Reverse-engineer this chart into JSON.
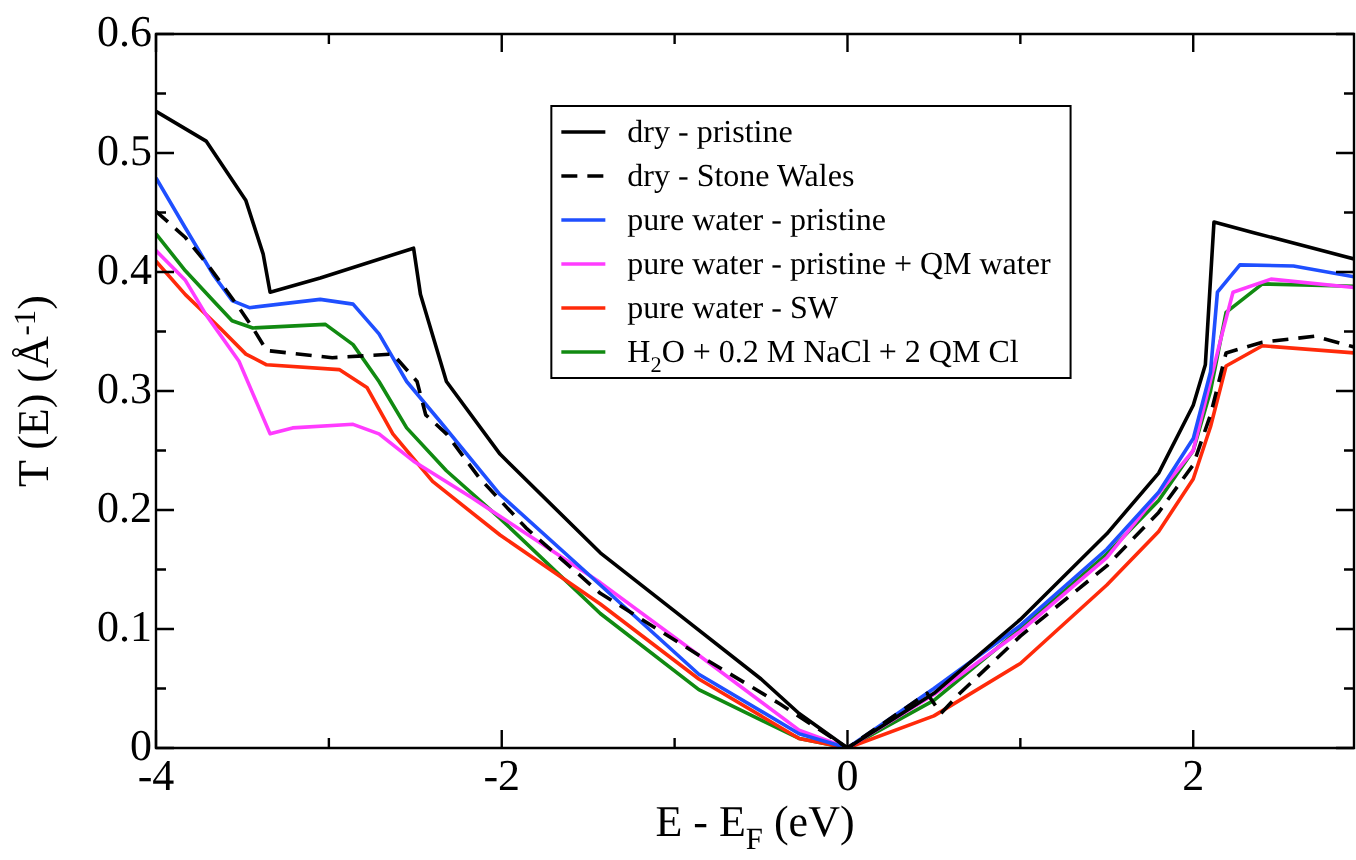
{
  "chart_data": {
    "type": "line",
    "xlabel": "E - E$_{F}$ (eV)",
    "ylabel": "T (E) (Å$^{-1}$)",
    "xlim": [
      -4,
      2.93
    ],
    "ylim": [
      0,
      0.6
    ],
    "xticks": [
      -4,
      {
        "value": -3,
        "label": null
      },
      -2,
      {
        "value": -1,
        "label": null
      },
      0,
      {
        "value": 1,
        "label": null
      },
      2
    ],
    "yticks": [
      0,
      {
        "value": 0.05,
        "label": null
      },
      0.1,
      {
        "value": 0.15,
        "label": null
      },
      0.2,
      {
        "value": 0.25,
        "label": null
      },
      0.3,
      {
        "value": 0.35,
        "label": null
      },
      0.4,
      {
        "value": 0.45,
        "label": null
      },
      0.5,
      {
        "value": 0.55,
        "label": null
      },
      0.6
    ],
    "grid": false,
    "legend": "top right",
    "marker": "none",
    "series": [
      {
        "name": "dry - pristine",
        "color": "#000000",
        "x": [
          -4,
          -3.71,
          -3.48,
          -3.38,
          -3.34,
          -3.05,
          -2.51,
          -2.47,
          -2.32,
          -2.01,
          -1.43,
          -1,
          -0.5,
          -0.28,
          0,
          0.5,
          1,
          1.5,
          1.8,
          2,
          2.07,
          2.12,
          2.35,
          2.93
        ],
        "values": [
          0.535,
          0.51,
          0.46,
          0.415,
          0.383,
          0.395,
          0.42,
          0.381,
          0.308,
          0.247,
          0.164,
          0.115,
          0.058,
          0.029,
          0,
          0.046,
          0.108,
          0.18,
          0.231,
          0.288,
          0.322,
          0.442,
          0.433,
          0.411
        ]
      },
      {
        "name": "dry - Stone Wales",
        "color": "#000000",
        "line_style": "dashed",
        "x": [
          -4,
          -3.83,
          -3.69,
          -3.52,
          -3.44,
          -3.36,
          -2.98,
          -2.63,
          -2.49,
          -2.44,
          -2.32,
          -2.13,
          -1.86,
          -1.43,
          -0.86,
          -0.39,
          0,
          0.25,
          0.46,
          0.54,
          0.65,
          1,
          1.5,
          1.8,
          2,
          2.1,
          2.19,
          2.4,
          2.7,
          2.93
        ],
        "values": [
          0.451,
          0.429,
          0.404,
          0.37,
          0.353,
          0.334,
          0.328,
          0.331,
          0.308,
          0.28,
          0.264,
          0.227,
          0.185,
          0.13,
          0.078,
          0.037,
          0,
          0.025,
          0.046,
          0.029,
          0.046,
          0.094,
          0.153,
          0.198,
          0.238,
          0.28,
          0.332,
          0.341,
          0.346,
          0.337
        ]
      },
      {
        "name": "pure water - pristine",
        "color": "#1f4fff",
        "x": [
          -4,
          -3.83,
          -3.67,
          -3.56,
          -3.46,
          -3.05,
          -2.86,
          -2.71,
          -2.55,
          -2.36,
          -2.01,
          -1.43,
          -0.86,
          -0.28,
          0,
          0.5,
          1,
          1.5,
          1.8,
          2,
          2.1,
          2.14,
          2.27,
          2.58,
          2.93
        ],
        "values": [
          0.479,
          0.437,
          0.398,
          0.376,
          0.37,
          0.377,
          0.373,
          0.348,
          0.308,
          0.275,
          0.213,
          0.137,
          0.062,
          0.012,
          0,
          0.05,
          0.103,
          0.167,
          0.215,
          0.26,
          0.316,
          0.383,
          0.406,
          0.405,
          0.396
        ]
      },
      {
        "name": "pure water - pristine + QM water",
        "color": "#ff3cff",
        "x": [
          -4,
          -3.83,
          -3.71,
          -3.52,
          -3.34,
          -3.21,
          -2.86,
          -2.71,
          -2.51,
          -2.17,
          -1.43,
          -0.86,
          -0.28,
          0,
          0.5,
          1,
          1.5,
          2,
          2.16,
          2.23,
          2.45,
          2.93
        ],
        "values": [
          0.418,
          0.393,
          0.364,
          0.325,
          0.264,
          0.269,
          0.272,
          0.264,
          0.241,
          0.21,
          0.139,
          0.078,
          0.015,
          0,
          0.045,
          0.098,
          0.16,
          0.25,
          0.344,
          0.383,
          0.394,
          0.387
        ]
      },
      {
        "name": "pure water - SW",
        "color": "#ff2a0a",
        "x": [
          -4,
          -3.83,
          -3.63,
          -3.48,
          -3.36,
          -2.94,
          -2.78,
          -2.63,
          -2.4,
          -2.01,
          -1.43,
          -0.86,
          -0.28,
          0,
          0.5,
          1,
          1.5,
          1.8,
          2,
          2.1,
          2.19,
          2.4,
          2.93
        ],
        "values": [
          0.409,
          0.381,
          0.353,
          0.331,
          0.322,
          0.318,
          0.303,
          0.264,
          0.224,
          0.179,
          0.121,
          0.058,
          0.008,
          0,
          0.027,
          0.071,
          0.137,
          0.182,
          0.226,
          0.27,
          0.321,
          0.338,
          0.332
        ]
      },
      {
        "name": "H$_{2}$O + 0.2 M NaCl + 2 QM Cl",
        "color": "#118a11",
        "x": [
          -4,
          -3.83,
          -3.67,
          -3.56,
          -3.44,
          -3.02,
          -2.86,
          -2.71,
          -2.55,
          -2.32,
          -2.01,
          -1.43,
          -0.86,
          -0.28,
          0,
          0.5,
          1,
          1.5,
          1.8,
          2,
          2.1,
          2.19,
          2.4,
          2.93
        ],
        "values": [
          0.432,
          0.401,
          0.376,
          0.359,
          0.353,
          0.356,
          0.339,
          0.308,
          0.269,
          0.233,
          0.193,
          0.113,
          0.049,
          0.008,
          0,
          0.04,
          0.1,
          0.163,
          0.208,
          0.25,
          0.3,
          0.366,
          0.39,
          0.388
        ]
      }
    ]
  }
}
